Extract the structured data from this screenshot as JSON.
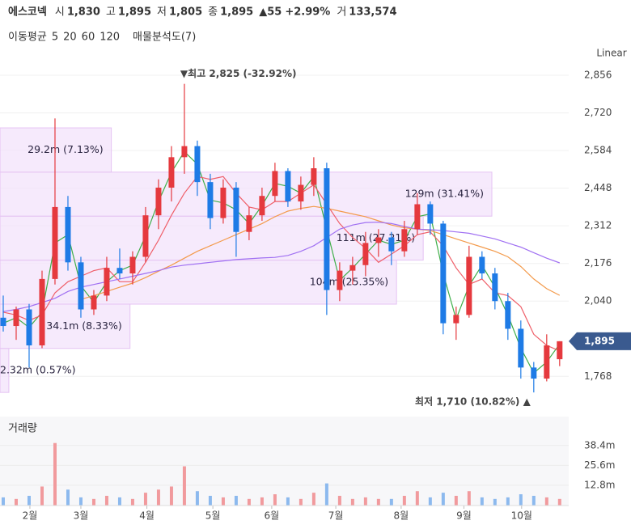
{
  "chart_data": {
    "type": "candlestick",
    "header": {
      "name": "에스코넥",
      "fields": [
        {
          "label": "시",
          "value": "1,830"
        },
        {
          "label": "고",
          "value": "1,895"
        },
        {
          "label": "저",
          "value": "1,805"
        },
        {
          "label": "종",
          "value": "1,895"
        }
      ],
      "change": "▲55",
      "change_pct": "+2.99%",
      "volume_label": "거",
      "volume_value": "133,574",
      "up_color": "#e5393e"
    },
    "legend_title": "이동평균",
    "profile_title": "매물분석도(7)",
    "scale_label": "Linear",
    "volume_title": "거래량",
    "up_color": "#e5393e",
    "down_color": "#1e7be6",
    "xlim": [
      -0.25,
      43.7
    ],
    "ylim": [
      1652,
      2900
    ],
    "yticks": [
      {
        "value": 2856,
        "label": "2,856"
      },
      {
        "value": 2720,
        "label": "2,720"
      },
      {
        "value": 2584,
        "label": "2,584"
      },
      {
        "value": 2448,
        "label": "2,448"
      },
      {
        "value": 2312,
        "label": "2,312"
      },
      {
        "value": 2176,
        "label": "2,176"
      },
      {
        "value": 2040,
        "label": "2,040"
      },
      {
        "value": 1768,
        "label": "1,768"
      }
    ],
    "grid": true,
    "month_ticks": [
      {
        "value": 2.06,
        "label": "2월"
      },
      {
        "value": 6,
        "label": "3월"
      },
      {
        "value": 11.1,
        "label": "4월"
      },
      {
        "value": 16.2,
        "label": "5월"
      },
      {
        "value": 20.75,
        "label": "6월"
      },
      {
        "value": 25.7,
        "label": "7월"
      },
      {
        "value": 30.75,
        "label": "8월"
      },
      {
        "value": 35.6,
        "label": "9월"
      },
      {
        "value": 40.06,
        "label": "10월"
      }
    ],
    "open": [
      1980,
      1950,
      2010,
      1880,
      2120,
      2380,
      2180,
      2010,
      2060,
      2160,
      2140,
      2200,
      2350,
      2450,
      2560,
      2600,
      2470,
      2340,
      2450,
      2290,
      2350,
      2420,
      2510,
      2400,
      2460,
      2520,
      2080,
      2150,
      2170,
      2250,
      2270,
      2220,
      2300,
      2390,
      2320,
      1960,
      1990,
      2200,
      2140,
      2040,
      1940,
      1800,
      1760,
      1830
    ],
    "high": [
      2060,
      2020,
      2030,
      2150,
      2700,
      2420,
      2200,
      2080,
      2200,
      2230,
      2220,
      2380,
      2480,
      2600,
      2825,
      2620,
      2500,
      2480,
      2470,
      2380,
      2450,
      2540,
      2520,
      2490,
      2560,
      2540,
      2180,
      2200,
      2290,
      2300,
      2290,
      2330,
      2430,
      2400,
      2330,
      2020,
      2240,
      2220,
      2160,
      2070,
      1970,
      1820,
      1920,
      1895
    ],
    "low": [
      1930,
      1900,
      1800,
      1870,
      2100,
      2150,
      1980,
      1990,
      2040,
      2120,
      2100,
      2180,
      2300,
      2400,
      2500,
      2420,
      2300,
      2320,
      2200,
      2260,
      2330,
      2400,
      2380,
      2370,
      2420,
      1990,
      2040,
      2100,
      2130,
      2200,
      2170,
      2200,
      2280,
      2280,
      1920,
      1900,
      1980,
      2120,
      2010,
      1900,
      1760,
      1710,
      1750,
      1805
    ],
    "close": [
      1950,
      2010,
      1880,
      2120,
      2380,
      2180,
      2010,
      2060,
      2160,
      2140,
      2200,
      2350,
      2450,
      2560,
      2600,
      2470,
      2340,
      2450,
      2290,
      2350,
      2420,
      2510,
      2400,
      2460,
      2520,
      2080,
      2150,
      2170,
      2250,
      2270,
      2220,
      2300,
      2390,
      2320,
      1960,
      1990,
      2200,
      2140,
      2040,
      1940,
      1800,
      1760,
      1880,
      1895
    ],
    "moving_averages": [
      {
        "name": "5",
        "color": "#3fae49",
        "values": [
          1960,
          1980,
          1945,
          2000,
          2250,
          2280,
          2095,
          2035,
          2110,
          2150,
          2170,
          2275,
          2400,
          2505,
          2580,
          2535,
          2405,
          2395,
          2370,
          2320,
          2385,
          2465,
          2455,
          2430,
          2490,
          2300,
          2115,
          2160,
          2210,
          2260,
          2245,
          2260,
          2345,
          2355,
          2140,
          1975,
          2095,
          2170,
          2090,
          1990,
          1870,
          1780,
          1820,
          1885
        ]
      },
      {
        "name": "20",
        "color": "#ef5e68",
        "values": [
          2000,
          1990,
          1970,
          1990,
          2070,
          2110,
          2130,
          2150,
          2160,
          2110,
          2110,
          2180,
          2260,
          2350,
          2430,
          2490,
          2480,
          2490,
          2430,
          2380,
          2370,
          2400,
          2400,
          2430,
          2460,
          2390,
          2320,
          2270,
          2230,
          2180,
          2210,
          2240,
          2280,
          2290,
          2240,
          2160,
          2100,
          2120,
          2070,
          2060,
          2020,
          1920,
          1880,
          1860
        ]
      },
      {
        "name": "60",
        "color": "#f39a4b",
        "values": [
          null,
          null,
          null,
          null,
          null,
          null,
          2046,
          2060,
          2075,
          2090,
          2105,
          2125,
          2148,
          2170,
          2195,
          2220,
          2240,
          2260,
          2280,
          2300,
          2320,
          2345,
          2365,
          2375,
          2382,
          2375,
          2365,
          2355,
          2345,
          2330,
          2315,
          2305,
          2300,
          2295,
          2280,
          2265,
          2250,
          2235,
          2220,
          2200,
          2165,
          2120,
          2085,
          2061
        ]
      },
      {
        "name": "120",
        "color": "#a070f2",
        "values": [
          2002,
          2010,
          2020,
          2035,
          2050,
          2075,
          2090,
          2100,
          2110,
          2120,
          2130,
          2140,
          2150,
          2163,
          2170,
          2175,
          2180,
          2185,
          2190,
          2193,
          2196,
          2198,
          2205,
          2220,
          2240,
          2270,
          2300,
          2315,
          2324,
          2325,
          2320,
          2310,
          2300,
          2298,
          2295,
          2290,
          2285,
          2275,
          2265,
          2250,
          2235,
          2215,
          2195,
          2178
        ]
      }
    ],
    "profile": {
      "edges": [
        1710,
        1869,
        2029,
        2188,
        2347,
        2506,
        2666
      ],
      "volumes": [
        2.32,
        34.1,
        104,
        111,
        129,
        29.2
      ],
      "labels": [
        "2.32m (0.57%)",
        "34.1m (8.33%)",
        "104m (25.35%)",
        "111m (27.21%)",
        "129m (31.41%)",
        "29.2m (7.13%)"
      ]
    },
    "high_note": {
      "index": 14,
      "value": 2825,
      "label": "▼최고 2,825 (-32.92%)"
    },
    "low_note": {
      "index": 41,
      "value": 1710,
      "label": "최저 1,710 (10.82%) ▲"
    },
    "current_price": {
      "value": 1895,
      "label": "1,895"
    },
    "volume": [
      5,
      4,
      6,
      12,
      40,
      10,
      5,
      4,
      6,
      5,
      4,
      8,
      10,
      12,
      25,
      9,
      6,
      5,
      6,
      4,
      5,
      7,
      5,
      4,
      8,
      14,
      6,
      4,
      5,
      4,
      4,
      6,
      9,
      5,
      8,
      6,
      9,
      5,
      4,
      5,
      7,
      6,
      5,
      4
    ],
    "vlim": [
      0,
      56
    ],
    "vticks": [
      {
        "value": 38.4,
        "label": "38.4m"
      },
      {
        "value": 25.6,
        "label": "25.6m"
      },
      {
        "value": 12.8,
        "label": "12.8m"
      }
    ]
  }
}
